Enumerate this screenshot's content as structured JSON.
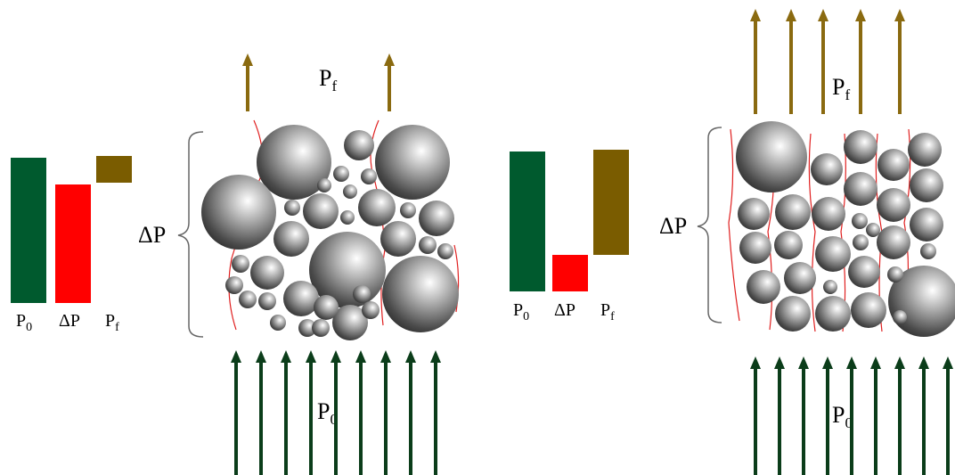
{
  "left": {
    "bar_labels": [
      {
        "symbol": "P",
        "sub": "0"
      },
      {
        "symbol": "ΔP"
      },
      {
        "symbol": "P",
        "sub": "f"
      }
    ],
    "top_label": {
      "symbol": "P",
      "sub": "f"
    },
    "side_label": "ΔP",
    "bottom_label": {
      "symbol": "P",
      "sub": "0"
    }
  },
  "right": {
    "bar_labels": [
      {
        "symbol": "P",
        "sub": "0"
      },
      {
        "symbol": "ΔP"
      },
      {
        "symbol": "P",
        "sub": "f"
      }
    ],
    "top_label": {
      "symbol": "P",
      "sub": "f"
    },
    "side_label": "ΔP",
    "bottom_label": {
      "symbol": "P",
      "sub": "0"
    }
  }
}
